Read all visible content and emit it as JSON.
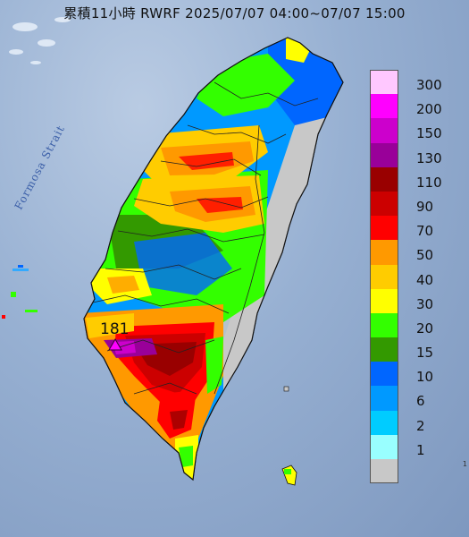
{
  "title": "累積11小時 RWRF 2025/07/07 04:00~07/07 15:00",
  "strait_label": "Formosa Strait",
  "max_value_label": "181",
  "corner_mark": "1",
  "legend": [
    {
      "label": "300",
      "color": "#ffc8ff"
    },
    {
      "label": "200",
      "color": "#ff00ff"
    },
    {
      "label": "150",
      "color": "#cc00cc"
    },
    {
      "label": "130",
      "color": "#990099"
    },
    {
      "label": "110",
      "color": "#990000"
    },
    {
      "label": "90",
      "color": "#cc0000"
    },
    {
      "label": "70",
      "color": "#ff0000"
    },
    {
      "label": "50",
      "color": "#ff9900"
    },
    {
      "label": "40",
      "color": "#ffcc00"
    },
    {
      "label": "30",
      "color": "#ffff00"
    },
    {
      "label": "20",
      "color": "#33ff00"
    },
    {
      "label": "15",
      "color": "#339900"
    },
    {
      "label": "10",
      "color": "#0066ff"
    },
    {
      "label": "6",
      "color": "#0099ff"
    },
    {
      "label": "2",
      "color": "#00ccff"
    },
    {
      "label": "1",
      "color": "#99ffff"
    },
    {
      "label": "",
      "color": "#c8c8c8"
    }
  ]
}
